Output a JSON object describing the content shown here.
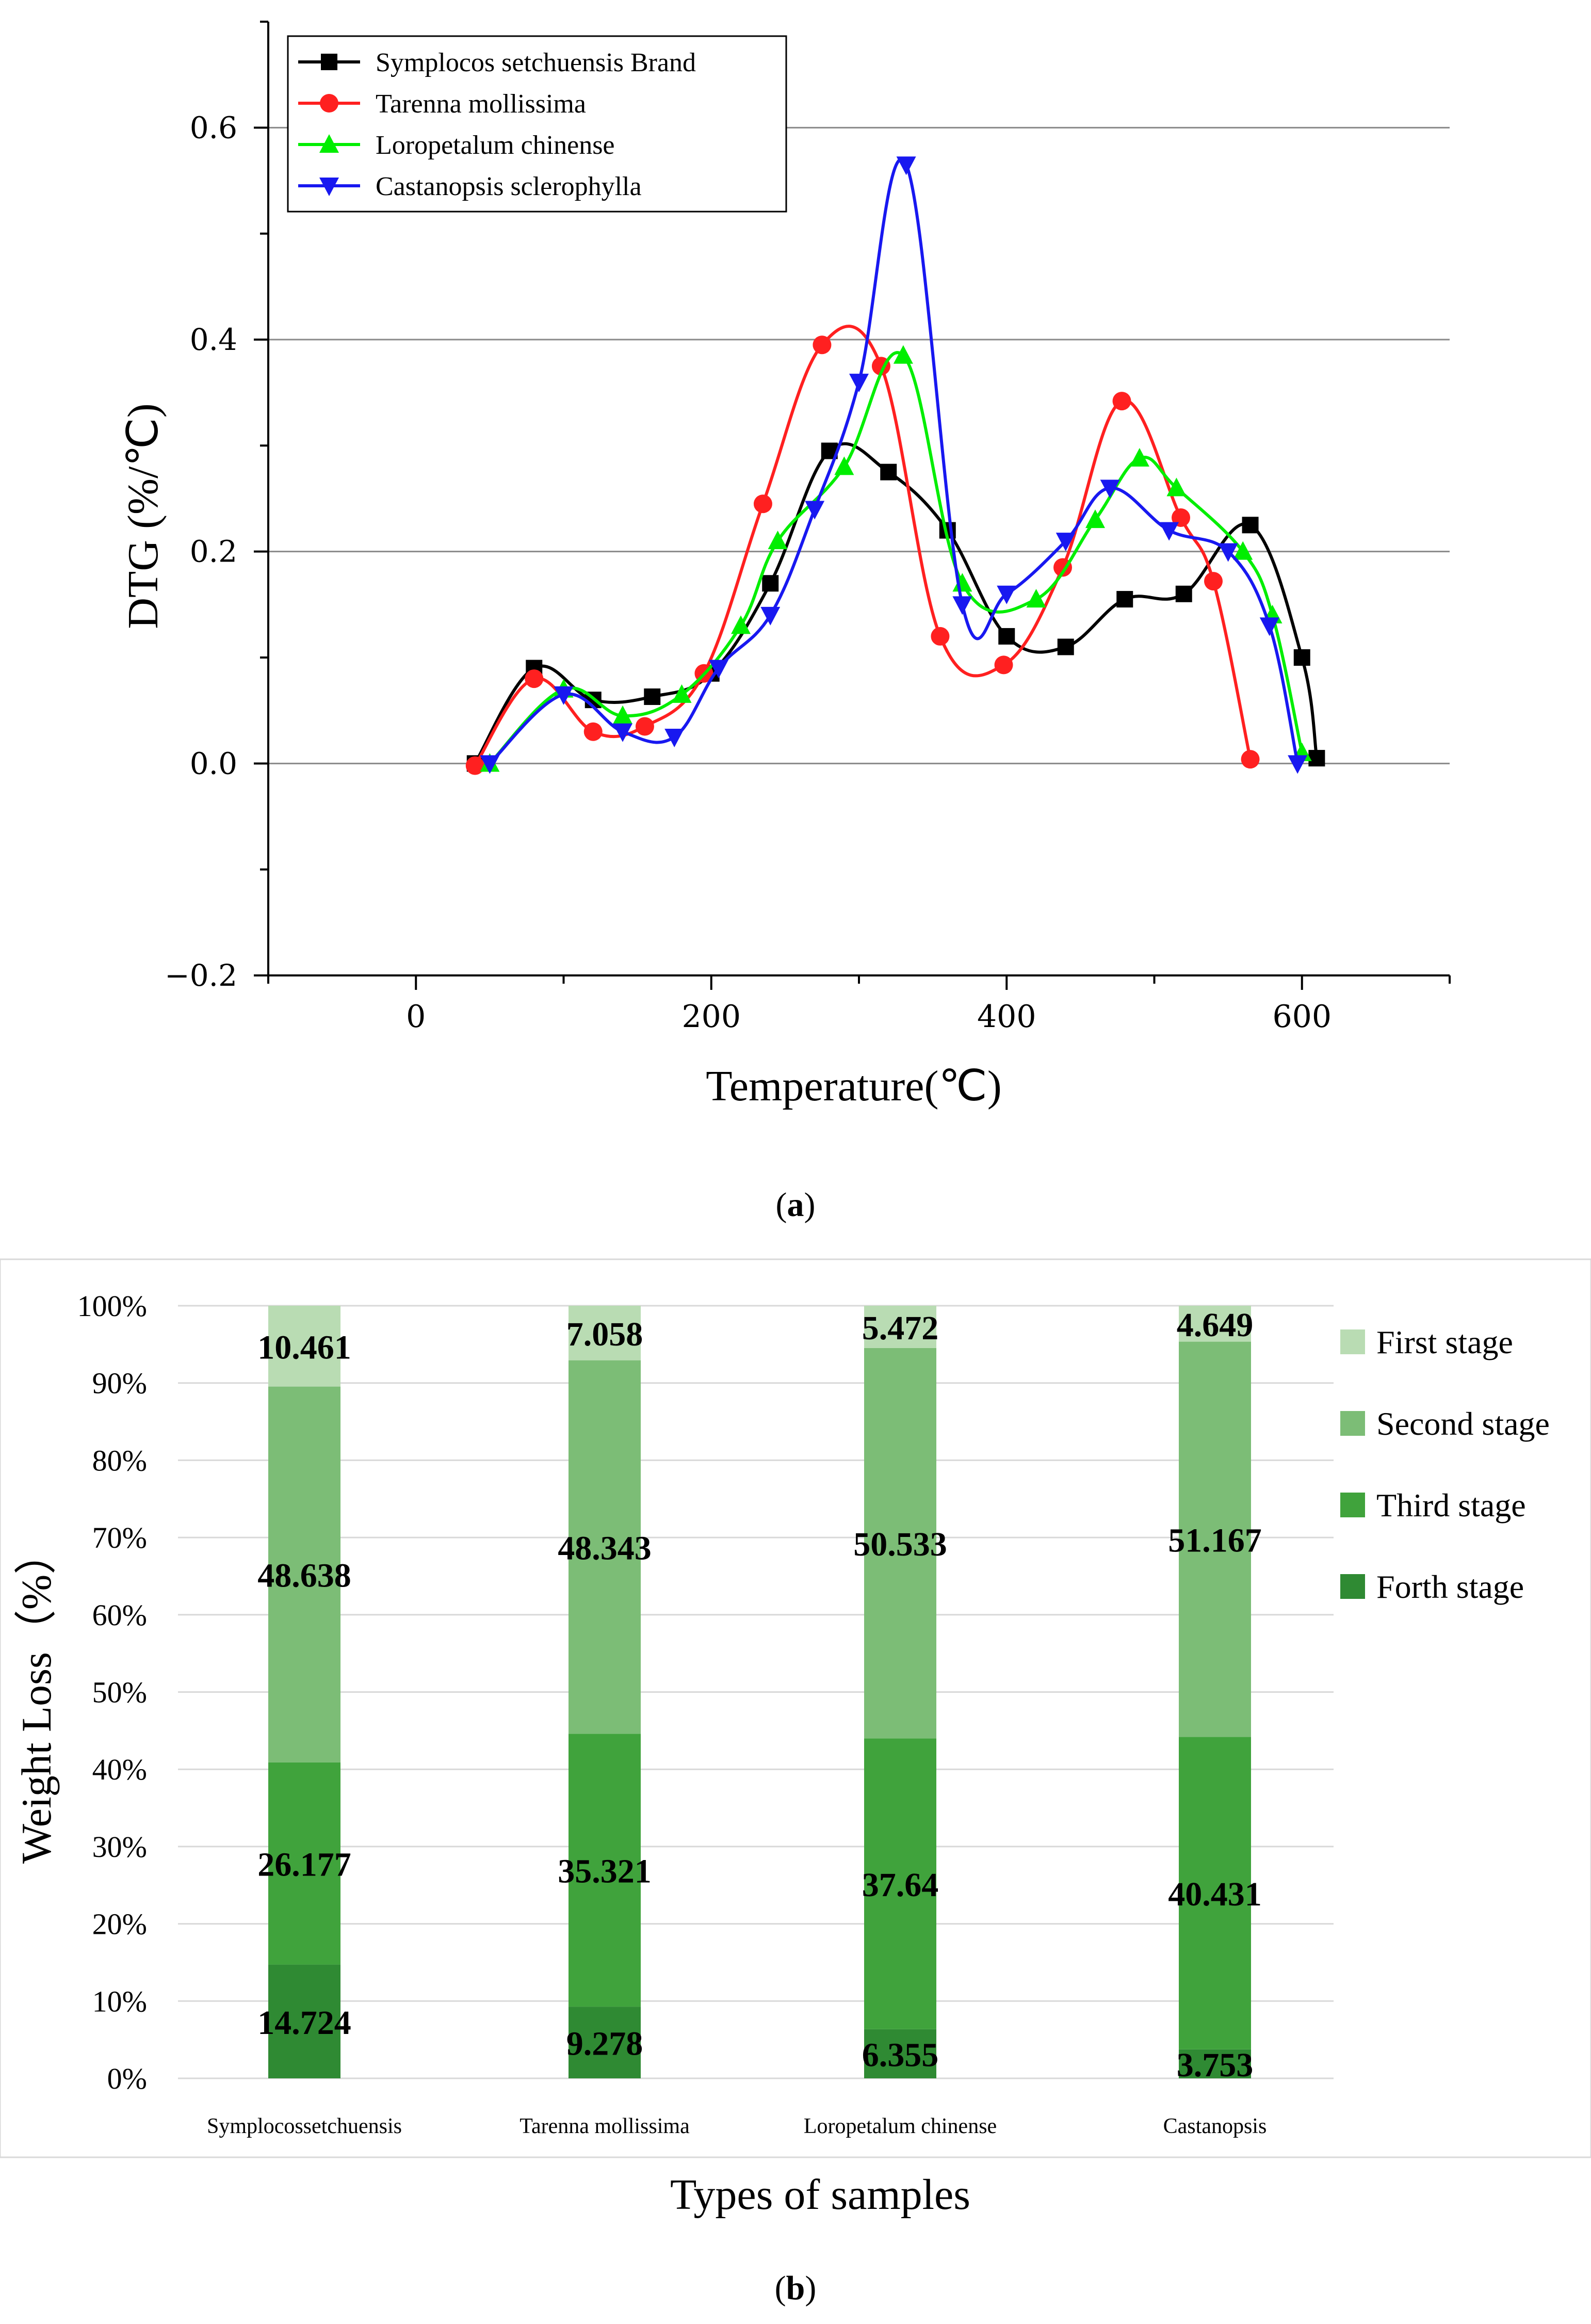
{
  "chart_data": [
    {
      "type": "line",
      "panel_label": "(a)",
      "panel_letter": "a",
      "xlabel": "Temperature(℃)",
      "ylabel": "DTG (%/℃)",
      "xlim": [
        -100,
        700
      ],
      "ylim": [
        -0.2,
        0.7
      ],
      "x_ticks": [
        0,
        200,
        400,
        600
      ],
      "x_tick_labels": [
        "0",
        "200",
        "400",
        "600"
      ],
      "y_ticks": [
        -0.2,
        0.0,
        0.2,
        0.4,
        0.6
      ],
      "y_tick_labels": [
        "−0.2",
        "0.0",
        "0.2",
        "0.4",
        "0.6"
      ],
      "grid": "horizontal",
      "legend_position": "top-left",
      "series": [
        {
          "name": "Symplocos setchuensis Brand",
          "color": "#000000",
          "marker": "square",
          "x": [
            40,
            80,
            120,
            160,
            200,
            240,
            280,
            320,
            360,
            400,
            440,
            480,
            520,
            565,
            600,
            610
          ],
          "y": [
            0.0,
            0.09,
            0.06,
            0.063,
            0.085,
            0.17,
            0.295,
            0.275,
            0.22,
            0.12,
            0.11,
            0.155,
            0.16,
            0.225,
            0.1,
            0.005
          ]
        },
        {
          "name": "Tarenna mollissima",
          "color": "#ff2020",
          "marker": "circle",
          "x": [
            40,
            80,
            120,
            155,
            195,
            235,
            275,
            315,
            355,
            398,
            438,
            478,
            518,
            540,
            565
          ],
          "y": [
            -0.002,
            0.08,
            0.03,
            0.035,
            0.085,
            0.245,
            0.395,
            0.375,
            0.12,
            0.093,
            0.185,
            0.342,
            0.232,
            0.172,
            0.004
          ]
        },
        {
          "name": "Loropetalum chinense",
          "color": "#00ee00",
          "marker": "triangle-up",
          "x": [
            50,
            100,
            140,
            180,
            220,
            245,
            290,
            330,
            370,
            420,
            460,
            490,
            515,
            560,
            580,
            600
          ],
          "y": [
            0.0,
            0.07,
            0.045,
            0.065,
            0.13,
            0.21,
            0.28,
            0.385,
            0.17,
            0.155,
            0.23,
            0.288,
            0.26,
            0.2,
            0.14,
            0.01
          ]
        },
        {
          "name": "Castanopsis sclerophylla",
          "color": "#1818f0",
          "marker": "triangle-down",
          "x": [
            50,
            100,
            140,
            175,
            205,
            240,
            270,
            300,
            332,
            370,
            400,
            440,
            470,
            510,
            550,
            578,
            597
          ],
          "y": [
            0.0,
            0.065,
            0.03,
            0.025,
            0.09,
            0.14,
            0.24,
            0.36,
            0.565,
            0.15,
            0.16,
            0.21,
            0.26,
            0.22,
            0.2,
            0.13,
            0.0
          ]
        }
      ]
    },
    {
      "type": "bar",
      "stacked": true,
      "normalized": true,
      "panel_label": "(b)",
      "panel_letter": "b",
      "xlabel": "Types of samples",
      "ylabel": "Weight Loss（%）",
      "ylim": [
        0,
        100
      ],
      "y_tick_labels": [
        "0%",
        "10%",
        "20%",
        "30%",
        "40%",
        "50%",
        "60%",
        "70%",
        "80%",
        "90%",
        "100%"
      ],
      "categories": [
        "Symplocossetchuensis",
        "Tarenna mollissima",
        "Loropetalum chinense",
        "Castanopsis"
      ],
      "grid": "horizontal",
      "legend_position": "right",
      "series": [
        {
          "name": "Forth stage",
          "color": "#2f8a33",
          "values": [
            14.724,
            9.278,
            6.355,
            3.753
          ],
          "labels": [
            "14.724",
            "9.278",
            "6.355",
            "3.753"
          ]
        },
        {
          "name": "Third stage",
          "color": "#40a33c",
          "values": [
            26.177,
            35.321,
            37.64,
            40.431
          ],
          "labels": [
            "26.177",
            "35.321",
            "37.64",
            "40.431"
          ]
        },
        {
          "name": "Second stage",
          "color": "#7cbd76",
          "values": [
            48.638,
            48.343,
            50.533,
            51.167
          ],
          "labels": [
            "48.638",
            "48.343",
            "50.533",
            "51.167"
          ]
        },
        {
          "name": "First stage",
          "color": "#b9dcb3",
          "values": [
            10.461,
            7.058,
            5.472,
            4.649
          ],
          "labels": [
            "10.461",
            "7.058",
            "5.472",
            "4.649"
          ]
        }
      ],
      "legend_order": [
        "First stage",
        "Second stage",
        "Third stage",
        "Forth stage"
      ]
    }
  ]
}
